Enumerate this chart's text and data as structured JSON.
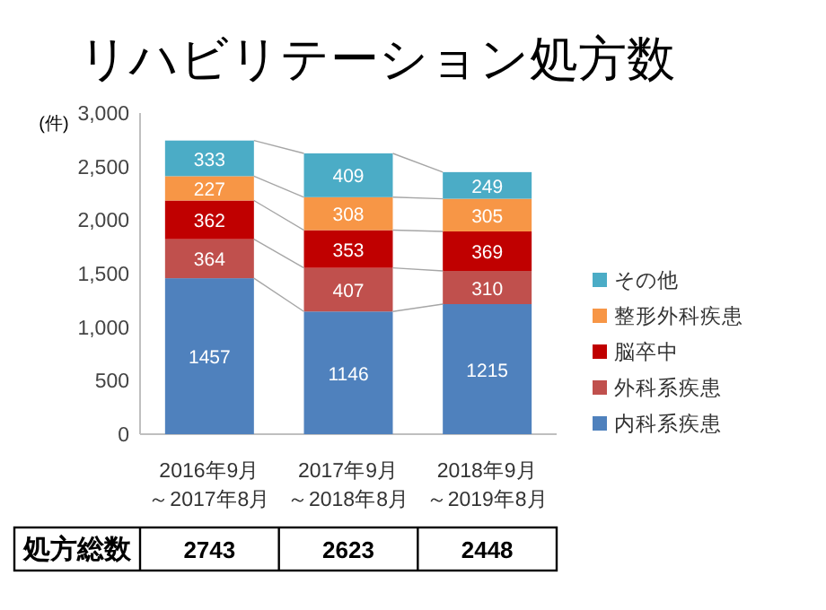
{
  "chart_data": {
    "type": "bar",
    "title": "リハビリテーション処方数",
    "ylabel": "(件)",
    "categories": [
      "2016年9月～2017年8月",
      "2017年9月～2018年8月",
      "2018年9月～2019年8月"
    ],
    "stacked": true,
    "series": [
      {
        "name": "内科系疾患",
        "color": "#4f81bd",
        "values": [
          1457,
          1146,
          1215
        ]
      },
      {
        "name": "外科系疾患",
        "color": "#c0504d",
        "values": [
          364,
          407,
          310
        ]
      },
      {
        "name": "脳卒中",
        "color": "#c00000",
        "values": [
          362,
          353,
          369
        ]
      },
      {
        "name": "整形外科疾患",
        "color": "#f79646",
        "values": [
          227,
          308,
          305
        ]
      },
      {
        "name": "その他",
        "color": "#4bacc6",
        "values": [
          333,
          409,
          249
        ]
      }
    ],
    "ylim": [
      0,
      3000
    ],
    "yticks": [
      0,
      {
        "value": 500,
        "label": "500"
      },
      {
        "value": 1000,
        "label": "1,000"
      },
      {
        "value": 1500,
        "label": "1,500"
      },
      {
        "value": 2000,
        "label": "2,000"
      },
      {
        "value": 2500,
        "label": "2,500"
      },
      {
        "value": 3000,
        "label": "3,000"
      }
    ],
    "data_labels": true,
    "legend": "right",
    "grid": false,
    "annotations": [
      "処方総数",
      "2743",
      "2623",
      "2448"
    ]
  }
}
